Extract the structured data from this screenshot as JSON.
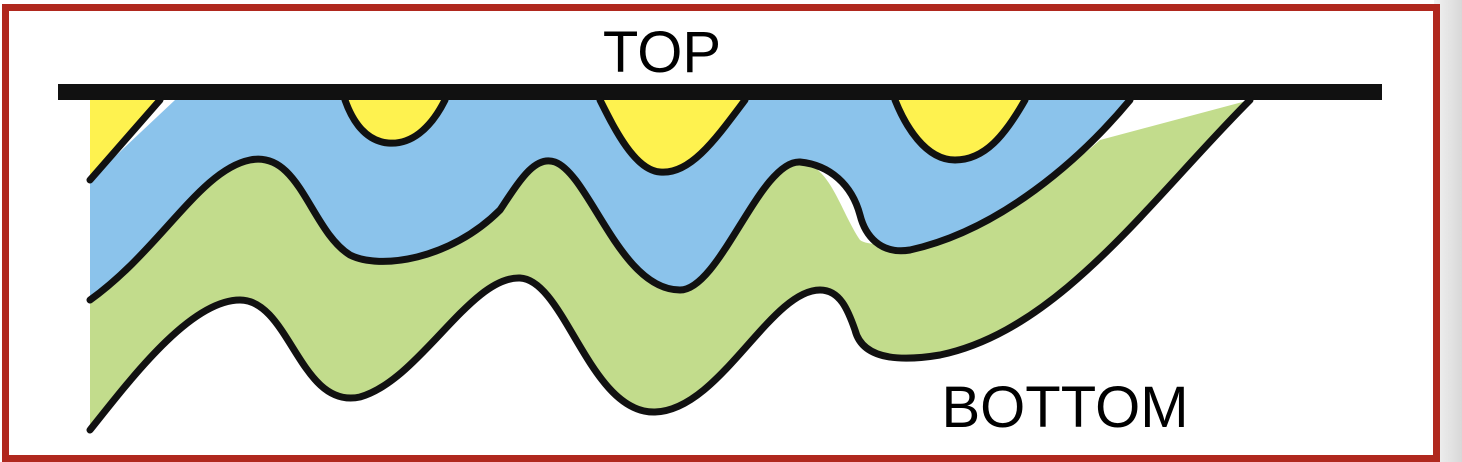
{
  "labels": {
    "top": "TOP",
    "bottom": "BOTTOM"
  },
  "colors": {
    "frame_border": "#b0281e",
    "yellow_layer": "#fef24f",
    "blue_layer": "#8bc3eb",
    "green_layer": "#c2dc8c",
    "outline": "#111111",
    "banner_text": "#1f2fbf"
  },
  "layers": [
    {
      "color_key": "yellow_layer"
    },
    {
      "color_key": "blue_layer"
    },
    {
      "color_key": "green_layer"
    }
  ]
}
